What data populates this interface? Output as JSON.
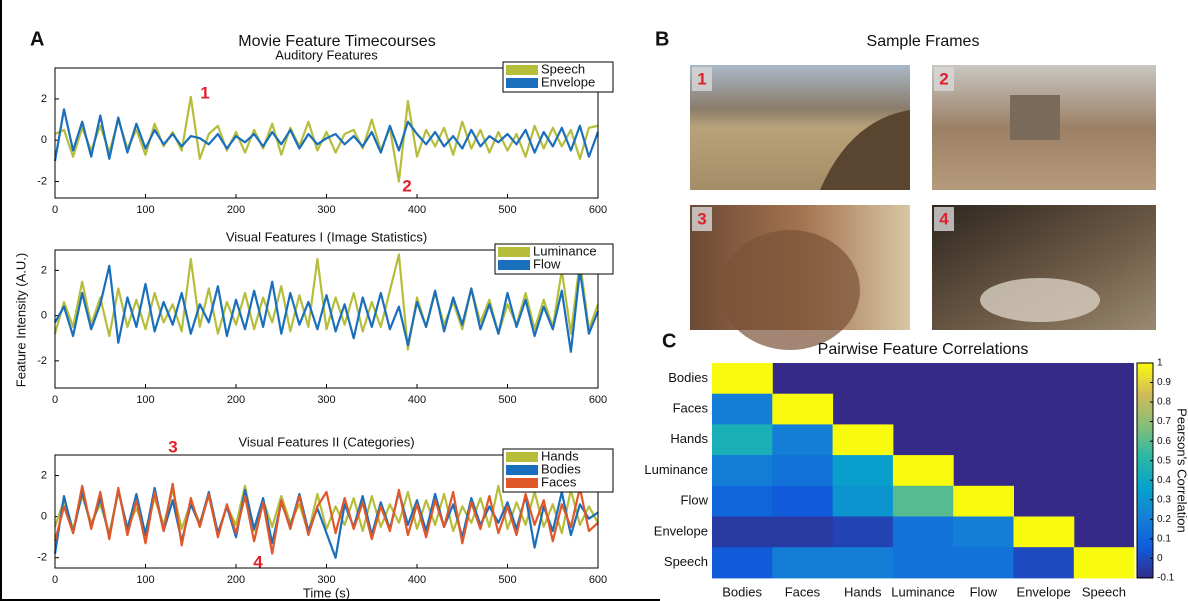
{
  "panel_labels": [
    "A",
    "B",
    "C"
  ],
  "figure_title": "Movie Feature Timecourses",
  "y_label": "Feature Intensity (A.U.)",
  "frames": {
    "title": "Sample Frames",
    "labels": [
      "1",
      "2",
      "3",
      "4"
    ]
  },
  "chart_data": [
    {
      "type": "line",
      "title": "Auditory Features",
      "legend": "upper right",
      "annotations": [
        "1",
        "2"
      ],
      "xlim": [
        0,
        600
      ],
      "xticks": [
        0,
        100,
        200,
        300,
        400,
        500,
        600
      ],
      "ylim": [
        -2.8,
        3.5
      ],
      "yticks": [
        -2,
        0,
        2
      ],
      "x": [
        0,
        10,
        20,
        30,
        40,
        50,
        60,
        70,
        80,
        90,
        100,
        110,
        120,
        130,
        140,
        150,
        160,
        170,
        180,
        190,
        200,
        210,
        220,
        230,
        240,
        250,
        260,
        270,
        280,
        290,
        300,
        310,
        320,
        330,
        340,
        350,
        360,
        370,
        380,
        390,
        400,
        410,
        420,
        430,
        440,
        450,
        460,
        470,
        480,
        490,
        500,
        510,
        520,
        530,
        540,
        550,
        560,
        570,
        580,
        590,
        600
      ],
      "series": [
        {
          "name": "Speech",
          "color": "#b6bd3a",
          "values": [
            0.3,
            0.5,
            -0.8,
            0.6,
            -0.5,
            0.7,
            -0.6,
            1,
            -0.4,
            0.5,
            -0.7,
            0.8,
            -0.3,
            0.4,
            -0.5,
            2.1,
            -0.9,
            0.3,
            0.7,
            -0.5,
            0.4,
            -0.6,
            0.5,
            -0.4,
            0.8,
            -0.7,
            0.6,
            -0.3,
            0.9,
            -0.5,
            0.4,
            -0.6,
            0.3,
            0.5,
            -0.4,
            1,
            -0.5,
            0.6,
            -2,
            1.9,
            -0.8,
            0.5,
            -0.3,
            0.6,
            -0.7,
            0.9,
            -0.4,
            0.5,
            -0.6,
            0.4,
            -0.5,
            0.3,
            -0.8,
            0.7,
            -0.4,
            0.6,
            -0.3,
            0.5,
            -0.9,
            0.6,
            0.7
          ]
        },
        {
          "name": "Envelope",
          "color": "#1a6fbd",
          "values": [
            -1,
            1.5,
            -0.5,
            0.9,
            -0.8,
            1.2,
            -0.9,
            1.1,
            -0.6,
            0.8,
            -0.4,
            0.5,
            -0.2,
            0.3,
            -0.3,
            0.2,
            0.1,
            -0.2,
            0.3,
            -0.4,
            0.2,
            -0.1,
            0.3,
            -0.3,
            0.4,
            -0.2,
            0.5,
            -0.4,
            0.3,
            -0.2,
            0.1,
            0.3,
            -0.2,
            0.2,
            -0.3,
            0.4,
            -0.6,
            0.7,
            -0.5,
            0.9,
            0.3,
            -0.2,
            0.4,
            -0.3,
            0.2,
            -0.4,
            0.5,
            -0.3,
            0.2,
            -0.1,
            0.3,
            -0.2,
            0.5,
            -0.6,
            0.4,
            -0.3,
            0.6,
            -0.5,
            0.7,
            -0.8,
            0.4
          ]
        }
      ]
    },
    {
      "type": "line",
      "title": "Visual Features I (Image Statistics)",
      "legend": "upper right",
      "xlim": [
        0,
        600
      ],
      "xticks": [
        0,
        100,
        200,
        300,
        400,
        500,
        600
      ],
      "ylim": [
        -3.2,
        2.9
      ],
      "yticks": [
        -2,
        0,
        2
      ],
      "x": [
        0,
        10,
        20,
        30,
        40,
        50,
        60,
        70,
        80,
        90,
        100,
        110,
        120,
        130,
        140,
        150,
        160,
        170,
        180,
        190,
        200,
        210,
        220,
        230,
        240,
        250,
        260,
        270,
        280,
        290,
        300,
        310,
        320,
        330,
        340,
        350,
        360,
        370,
        380,
        390,
        400,
        410,
        420,
        430,
        440,
        450,
        460,
        470,
        480,
        490,
        500,
        510,
        520,
        530,
        540,
        550,
        560,
        570,
        580,
        590,
        600
      ],
      "series": [
        {
          "name": "Luminance",
          "color": "#b6bd3a",
          "values": [
            -0.8,
            0.6,
            -0.5,
            1.5,
            -0.4,
            0.8,
            -0.9,
            1.2,
            -0.5,
            0.7,
            -0.6,
            1,
            -0.3,
            0.5,
            -0.7,
            2.5,
            -0.5,
            1.2,
            -0.8,
            0.6,
            -0.4,
            1,
            -0.6,
            0.8,
            -0.3,
            1.3,
            -0.7,
            0.9,
            -0.5,
            2.5,
            -0.6,
            0.8,
            -0.4,
            1,
            -0.7,
            0.6,
            -0.5,
            1.1,
            2.7,
            -1.5,
            0.8,
            -0.5,
            1,
            -0.4,
            0.6,
            -0.6,
            1.2,
            -0.3,
            0.7,
            -0.8,
            0.5,
            -0.4,
            1,
            -0.6,
            0.7,
            -0.5,
            2,
            -0.8,
            2.4,
            -0.6,
            0.5
          ]
        },
        {
          "name": "Flow",
          "color": "#1a6fbd",
          "values": [
            -0.3,
            0.4,
            -0.9,
            1,
            -0.6,
            0.5,
            2.2,
            -1.2,
            0.8,
            -0.5,
            1.4,
            -0.7,
            0.6,
            -0.4,
            1,
            -0.8,
            0.5,
            -0.3,
            1.3,
            -0.9,
            0.7,
            -0.6,
            1.1,
            -0.5,
            1.5,
            -0.8,
            1,
            -0.4,
            0.6,
            -0.6,
            0.9,
            -0.7,
            0.5,
            -1,
            0.8,
            -0.5,
            1,
            -0.6,
            0.4,
            -1.3,
            0.6,
            -0.5,
            1.1,
            -0.7,
            0.8,
            -0.4,
            1.2,
            -0.6,
            0.5,
            -0.8,
            1,
            -0.5,
            0.7,
            -0.9,
            0.4,
            -0.6,
            1.1,
            -1.6,
            2,
            -0.8,
            0.2
          ]
        }
      ]
    },
    {
      "type": "line",
      "title": "Visual Features II (Categories)",
      "xlabel": "Time (s)",
      "legend": "upper right",
      "annotations": [
        "3",
        "4"
      ],
      "xlim": [
        0,
        600
      ],
      "xticks": [
        0,
        100,
        200,
        300,
        400,
        500,
        600
      ],
      "ylim": [
        -2.5,
        3
      ],
      "yticks": [
        -2,
        0,
        2
      ],
      "x": [
        0,
        10,
        20,
        30,
        40,
        50,
        60,
        70,
        80,
        90,
        100,
        110,
        120,
        130,
        140,
        150,
        160,
        170,
        180,
        190,
        200,
        210,
        220,
        230,
        240,
        250,
        260,
        270,
        280,
        290,
        300,
        310,
        320,
        330,
        340,
        350,
        360,
        370,
        380,
        390,
        400,
        410,
        420,
        430,
        440,
        450,
        460,
        470,
        480,
        490,
        500,
        510,
        520,
        530,
        540,
        550,
        560,
        570,
        580,
        590,
        600
      ],
      "series": [
        {
          "name": "Hands",
          "color": "#b6bd3a",
          "values": [
            -0.5,
            0.8,
            -0.6,
            1,
            -0.3,
            0.6,
            -0.8,
            1.2,
            -0.5,
            0.4,
            -0.7,
            0.9,
            -0.4,
            1.3,
            -0.6,
            0.7,
            -0.3,
            1,
            -0.9,
            0.5,
            -0.4,
            1.5,
            -0.7,
            0.8,
            -0.5,
            1,
            -0.3,
            0.6,
            -0.8,
            1.1,
            -0.6,
            0.5,
            -0.4,
            0.9,
            -0.7,
            1,
            -0.5,
            0.6,
            -0.3,
            1.2,
            -0.6,
            0.8,
            -0.4,
            1.1,
            -0.7,
            0.5,
            -0.3,
            0.9,
            -0.5,
            1.5,
            -0.6,
            0.7,
            -0.4,
            1.2,
            -0.5,
            0.6,
            -0.8,
            1.3,
            -0.4,
            0.5,
            -0.3
          ]
        },
        {
          "name": "Bodies",
          "color": "#1a6fbd",
          "values": [
            -1.8,
            1,
            -0.8,
            1.2,
            -0.5,
            0.9,
            -1,
            1.3,
            -0.6,
            1.1,
            -0.9,
            1.4,
            -0.7,
            0.8,
            -1.2,
            0.6,
            -0.4,
            1.2,
            -0.8,
            0.5,
            -1,
            1.3,
            -0.6,
            0.9,
            -1.3,
            0.7,
            -0.5,
            1.1,
            -0.7,
            0.4,
            -0.8,
            -2,
            0.6,
            -0.5,
            1,
            -0.9,
            0.7,
            -0.6,
            1.2,
            -0.4,
            0.8,
            -0.7,
            1.1,
            -0.5,
            0.6,
            -1,
            0.9,
            -0.4,
            0.5,
            -0.3,
            0.7,
            -0.6,
            1,
            -1.5,
            0.5,
            -0.7,
            1.2,
            -0.9,
            0.6,
            -0.1,
            0.2
          ]
        },
        {
          "name": "Faces",
          "color": "#e0572a",
          "values": [
            -1.2,
            0.5,
            -0.8,
            1.5,
            -0.6,
            1.2,
            -1.1,
            1.4,
            -0.9,
            0.8,
            -1.3,
            1.2,
            -0.7,
            1.6,
            -1.4,
            0.9,
            -0.5,
            1.1,
            -1,
            0.6,
            -0.8,
            1,
            -1.2,
            0.7,
            -1.8,
            0.8,
            -0.6,
            1,
            -0.9,
            0.5,
            1.2,
            -0.8,
            0.9,
            -0.6,
            0.7,
            -1.1,
            0.5,
            -0.7,
            1.3,
            -0.9,
            0.6,
            -1,
            0.8,
            -0.5,
            1.2,
            -1.3,
            0.7,
            -0.6,
            1,
            -0.8,
            0.5,
            -0.9,
            1.1,
            -0.4,
            0.8,
            -1.2,
            0.6,
            -0.5,
            1.4,
            -0.7,
            -0.3
          ]
        }
      ]
    },
    {
      "type": "heatmap",
      "title": "Pairwise Feature Correlations",
      "categories": [
        "Bodies",
        "Faces",
        "Hands",
        "Luminance",
        "Flow",
        "Envelope",
        "Speech"
      ],
      "values": [
        [
          1,
          null,
          null,
          null,
          null,
          null,
          null
        ],
        [
          0.2,
          1,
          null,
          null,
          null,
          null,
          null
        ],
        [
          0.45,
          0.2,
          1,
          null,
          null,
          null,
          null
        ],
        [
          0.2,
          0.15,
          0.35,
          1,
          null,
          null,
          null
        ],
        [
          0.1,
          0.05,
          0.3,
          0.6,
          1,
          null,
          null
        ],
        [
          -0.05,
          -0.05,
          -0.02,
          0.15,
          0.2,
          1,
          null
        ],
        [
          0.05,
          0.2,
          0.2,
          0.15,
          0.15,
          0,
          1
        ]
      ],
      "zlim": [
        -0.1,
        1
      ],
      "zticks": [
        -0.1,
        0,
        0.1,
        0.2,
        0.3,
        0.4,
        0.5,
        0.6,
        0.7,
        0.8,
        0.9,
        1
      ],
      "colorbar_label": "Pearson's Correlation",
      "colormap": "parula"
    }
  ]
}
